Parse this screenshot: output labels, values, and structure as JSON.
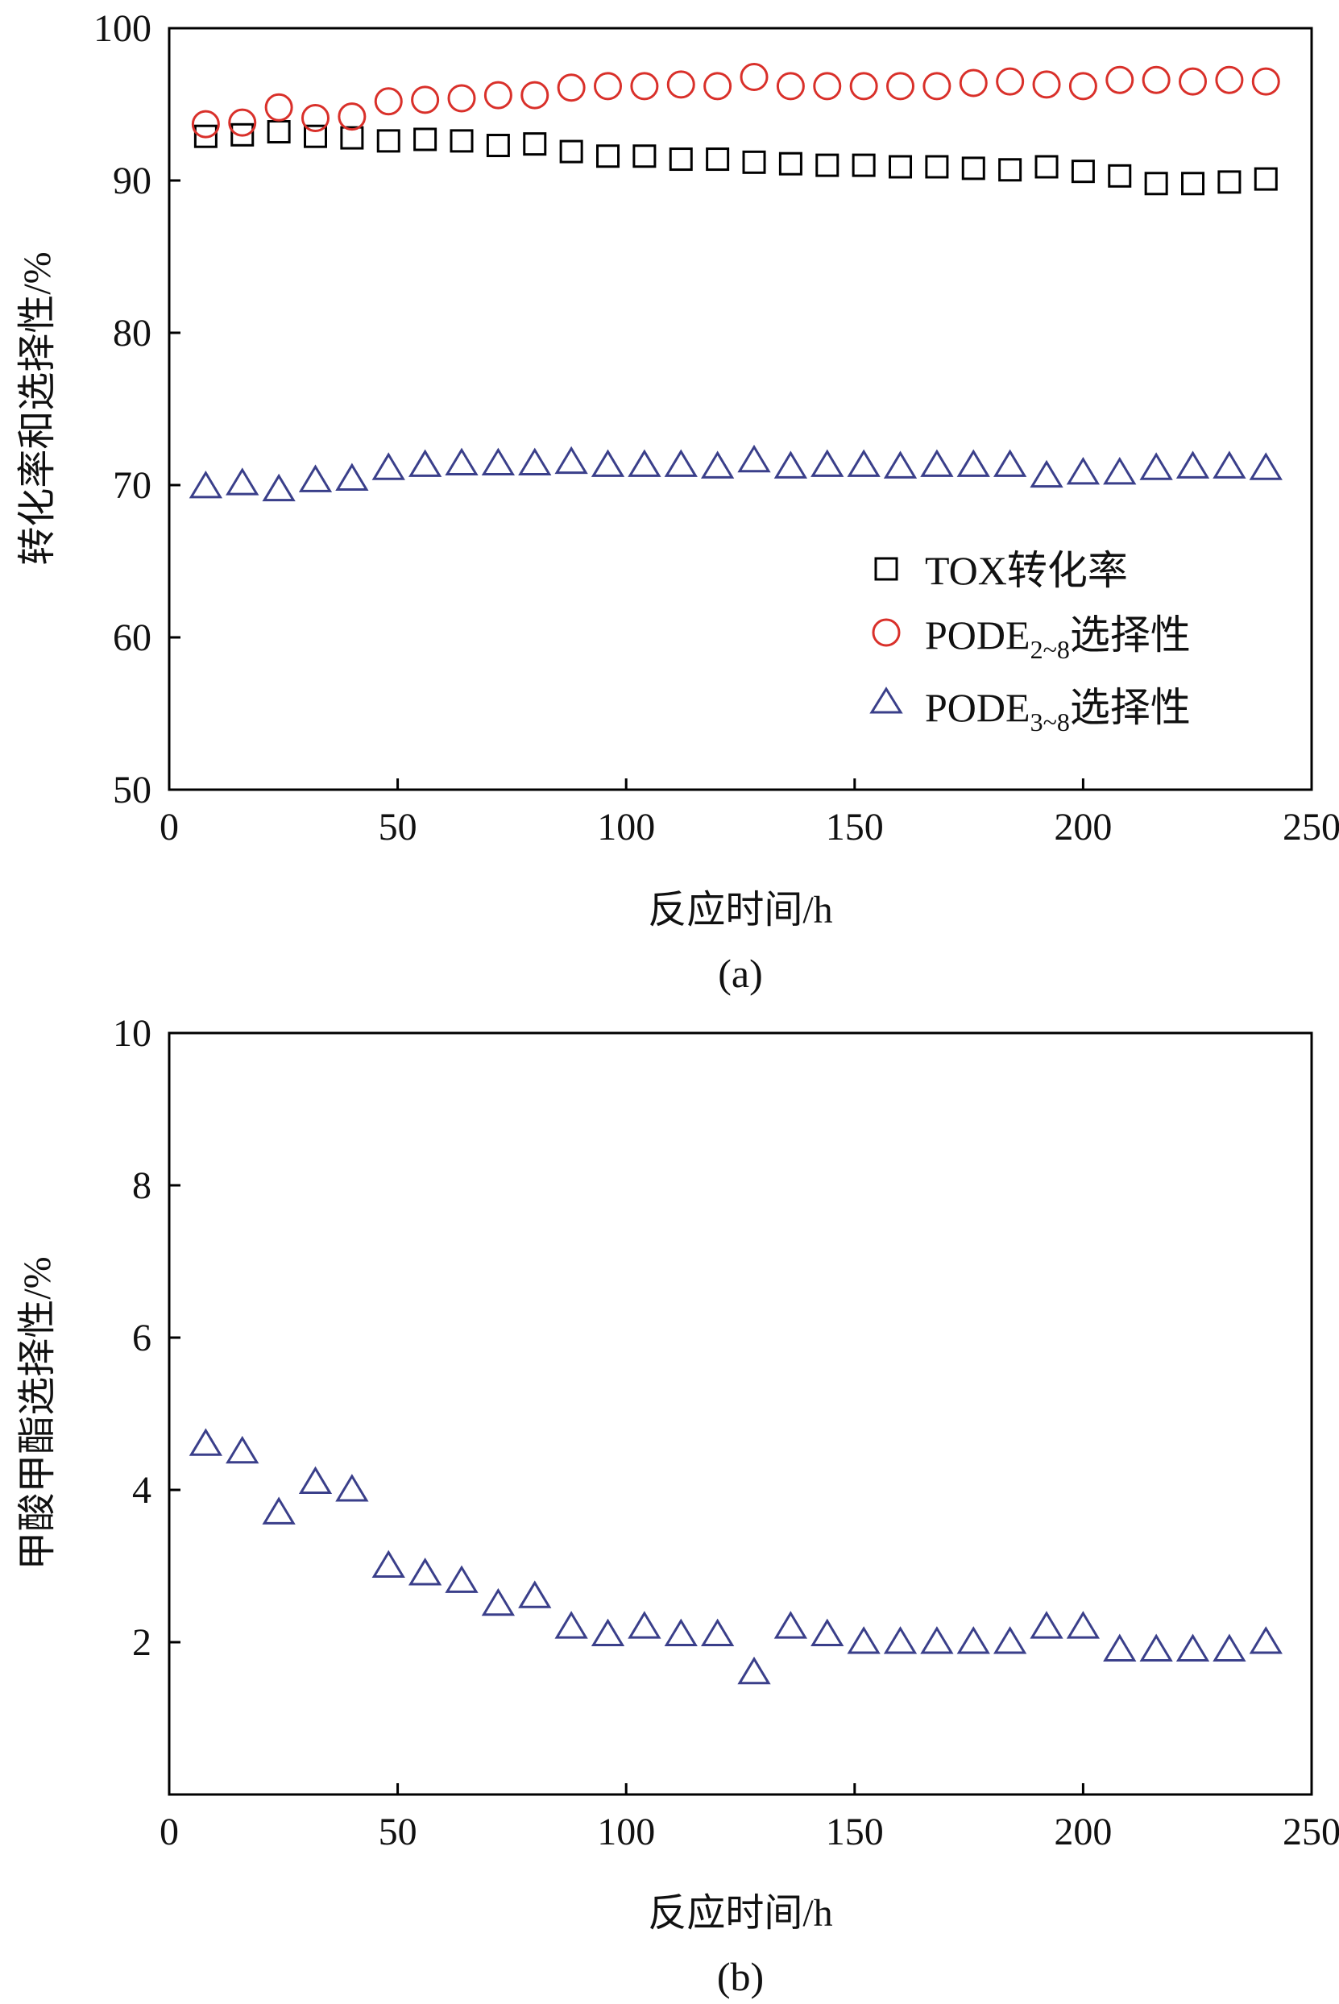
{
  "chart_data": [
    {
      "type": "scatter",
      "caption": "(a)",
      "xlabel": "反应时间/h",
      "ylabel": "转化率和选择性/%",
      "xlim": [
        0,
        250
      ],
      "ylim": [
        50,
        100
      ],
      "xticks": [
        0,
        50,
        100,
        150,
        200,
        250
      ],
      "yticks": [
        50,
        60,
        70,
        80,
        90,
        100
      ],
      "legend_position": "bottom-right",
      "x": [
        8,
        16,
        24,
        32,
        40,
        48,
        56,
        64,
        72,
        80,
        88,
        96,
        104,
        112,
        120,
        128,
        136,
        144,
        152,
        160,
        168,
        176,
        184,
        192,
        200,
        208,
        216,
        224,
        232,
        240
      ],
      "series": [
        {
          "name": "TOX转化率",
          "legend_main": "TOX转化率",
          "legend_sub": "",
          "legend_suffix": "",
          "marker": "square",
          "color": "#000000",
          "values": [
            92.9,
            93.0,
            93.2,
            92.9,
            92.8,
            92.6,
            92.7,
            92.6,
            92.3,
            92.4,
            91.9,
            91.6,
            91.6,
            91.4,
            91.4,
            91.2,
            91.1,
            91.0,
            91.0,
            90.9,
            90.9,
            90.8,
            90.7,
            90.9,
            90.6,
            90.3,
            89.8,
            89.8,
            89.9,
            90.1
          ]
        },
        {
          "name": "PODE2~8选择性",
          "legend_main": "PODE",
          "legend_sub": "2~8",
          "legend_suffix": "选择性",
          "marker": "circle",
          "color": "#d9302a",
          "values": [
            93.7,
            93.8,
            94.8,
            94.1,
            94.2,
            95.2,
            95.3,
            95.4,
            95.6,
            95.6,
            96.1,
            96.2,
            96.2,
            96.3,
            96.2,
            96.8,
            96.2,
            96.2,
            96.2,
            96.2,
            96.2,
            96.4,
            96.5,
            96.3,
            96.2,
            96.6,
            96.6,
            96.5,
            96.6,
            96.5
          ]
        },
        {
          "name": "PODE3~8选择性",
          "legend_main": "PODE",
          "legend_sub": "3~8",
          "legend_suffix": "选择性",
          "marker": "triangle",
          "color": "#3a3f8a",
          "values": [
            69.9,
            70.1,
            69.7,
            70.3,
            70.4,
            71.1,
            71.3,
            71.4,
            71.4,
            71.4,
            71.5,
            71.3,
            71.3,
            71.3,
            71.2,
            71.6,
            71.2,
            71.3,
            71.3,
            71.2,
            71.3,
            71.3,
            71.3,
            70.6,
            70.8,
            70.8,
            71.1,
            71.2,
            71.2,
            71.1
          ]
        }
      ]
    },
    {
      "type": "scatter",
      "caption": "(b)",
      "xlabel": "反应时间/h",
      "ylabel": "甲酸甲酯选择性/%",
      "xlim": [
        0,
        250
      ],
      "ylim": [
        0,
        10
      ],
      "xticks": [
        0,
        50,
        100,
        150,
        200,
        250
      ],
      "yticks": [
        2,
        4,
        6,
        8,
        10
      ],
      "x": [
        8,
        16,
        24,
        32,
        40,
        48,
        56,
        64,
        72,
        80,
        88,
        96,
        104,
        112,
        120,
        128,
        136,
        144,
        152,
        160,
        168,
        176,
        184,
        192,
        200,
        208,
        216,
        224,
        232,
        240
      ],
      "series": [
        {
          "marker": "triangle",
          "color": "#3a3f8a",
          "values": [
            4.6,
            4.5,
            3.7,
            4.1,
            4.0,
            3.0,
            2.9,
            2.8,
            2.5,
            2.6,
            2.2,
            2.1,
            2.2,
            2.1,
            2.1,
            1.6,
            2.2,
            2.1,
            2.0,
            2.0,
            2.0,
            2.0,
            2.0,
            2.2,
            2.2,
            1.9,
            1.9,
            1.9,
            1.9,
            2.0
          ]
        }
      ]
    }
  ]
}
